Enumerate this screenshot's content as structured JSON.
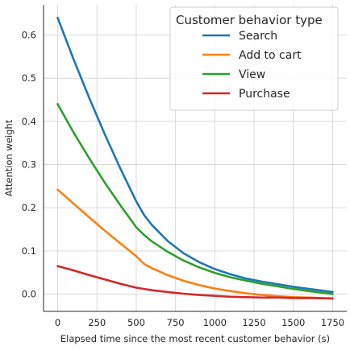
{
  "chart_data": {
    "type": "line",
    "title": "",
    "xlabel": "Elapsed time since the most recent customer behavior (s)",
    "ylabel": "Attention weight",
    "xlim": [
      -90,
      1840
    ],
    "ylim": [
      -0.04,
      0.67
    ],
    "xticks": [
      0,
      250,
      500,
      750,
      1000,
      1250,
      1500,
      1750
    ],
    "yticks": [
      0.0,
      0.1,
      0.2,
      0.3,
      0.4,
      0.5,
      0.6
    ],
    "ytick_labels": [
      "0.0",
      "0.1",
      "0.2",
      "0.3",
      "0.4",
      "0.5",
      "0.6"
    ],
    "grid": true,
    "legend": {
      "title": "Customer behavior type",
      "placement": "top-right"
    },
    "series": [
      {
        "name": "Search",
        "color": "#1f77b4",
        "x": [
          0,
          100,
          200,
          300,
          400,
          500,
          550,
          600,
          700,
          800,
          900,
          1000,
          1100,
          1200,
          1300,
          1400,
          1500,
          1600,
          1750
        ],
        "y": [
          0.64,
          0.545,
          0.455,
          0.37,
          0.29,
          0.215,
          0.183,
          0.16,
          0.123,
          0.095,
          0.074,
          0.058,
          0.046,
          0.036,
          0.029,
          0.023,
          0.017,
          0.012,
          0.005
        ]
      },
      {
        "name": "Add to cart",
        "color": "#ff7f0e",
        "x": [
          0,
          100,
          200,
          300,
          400,
          500,
          550,
          600,
          700,
          800,
          900,
          1000,
          1100,
          1200,
          1300,
          1400,
          1500,
          1600,
          1750
        ],
        "y": [
          0.242,
          0.21,
          0.178,
          0.147,
          0.117,
          0.088,
          0.07,
          0.06,
          0.044,
          0.031,
          0.021,
          0.013,
          0.007,
          0.002,
          -0.002,
          -0.005,
          -0.007,
          -0.008,
          -0.01
        ]
      },
      {
        "name": "View",
        "color": "#2ca02c",
        "x": [
          0,
          100,
          200,
          300,
          400,
          500,
          550,
          600,
          700,
          800,
          900,
          1000,
          1100,
          1200,
          1300,
          1400,
          1500,
          1600,
          1750
        ],
        "y": [
          0.44,
          0.375,
          0.315,
          0.258,
          0.205,
          0.155,
          0.137,
          0.122,
          0.098,
          0.078,
          0.062,
          0.049,
          0.039,
          0.031,
          0.024,
          0.018,
          0.012,
          0.007,
          0.0
        ]
      },
      {
        "name": "Purchase",
        "color": "#d62728",
        "x": [
          0,
          100,
          200,
          300,
          400,
          500,
          550,
          600,
          700,
          800,
          900,
          1000,
          1100,
          1200,
          1300,
          1400,
          1500,
          1600,
          1750
        ],
        "y": [
          0.065,
          0.055,
          0.044,
          0.034,
          0.024,
          0.015,
          0.012,
          0.009,
          0.005,
          0.001,
          -0.002,
          -0.004,
          -0.006,
          -0.007,
          -0.008,
          -0.008,
          -0.009,
          -0.009,
          -0.01
        ]
      }
    ]
  }
}
